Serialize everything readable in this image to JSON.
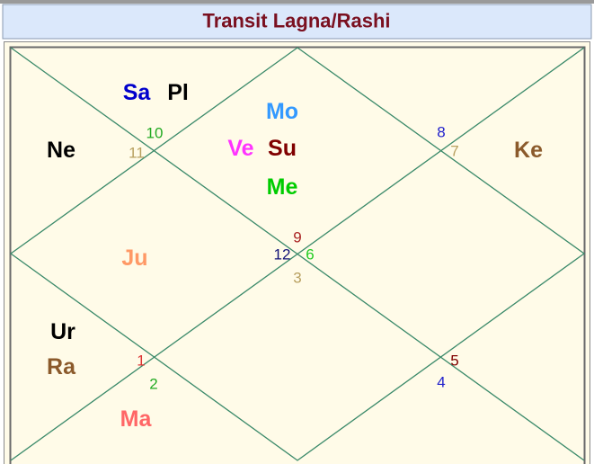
{
  "title": "Transit Lagna/Rashi",
  "planets": [
    "Sa",
    "Pl",
    "Ne",
    "Mo",
    "Ve",
    "Su",
    "Me",
    "Ke",
    "Ju",
    "Ur",
    "Ra",
    "Ma"
  ],
  "signs": [
    10,
    11,
    8,
    7,
    9,
    12,
    6,
    3,
    1,
    2,
    5,
    4
  ]
}
